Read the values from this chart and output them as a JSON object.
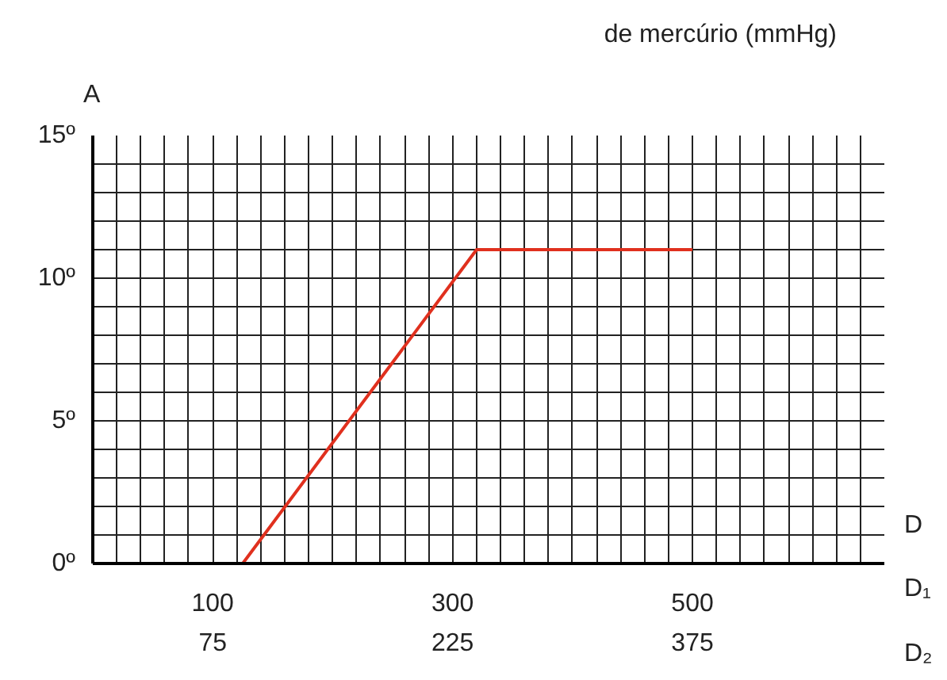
{
  "chart_data": {
    "type": "line",
    "title": "de mercúrio (mmHg)",
    "ylabel": "A",
    "xlabel": "D",
    "x2label": "D₂",
    "annotations": [
      "D₁"
    ],
    "x": [
      125,
      320,
      500
    ],
    "series": [
      {
        "color": "#e0301e",
        "values": [
          0,
          11,
          11
        ]
      }
    ],
    "xlim": [
      0,
      660
    ],
    "xticks": [
      100,
      300,
      500
    ],
    "x2lim": [
      0,
      495
    ],
    "x2ticks": [
      75,
      225,
      375
    ],
    "ylim": [
      0,
      15
    ],
    "yticks": [
      {
        "value": 0,
        "label": "0º"
      },
      {
        "value": 5,
        "label": "5º"
      },
      {
        "value": 10,
        "label": "10º"
      },
      {
        "value": 15,
        "label": "15º"
      }
    ],
    "grid": true,
    "marker": "none",
    "line_style": "solid"
  }
}
